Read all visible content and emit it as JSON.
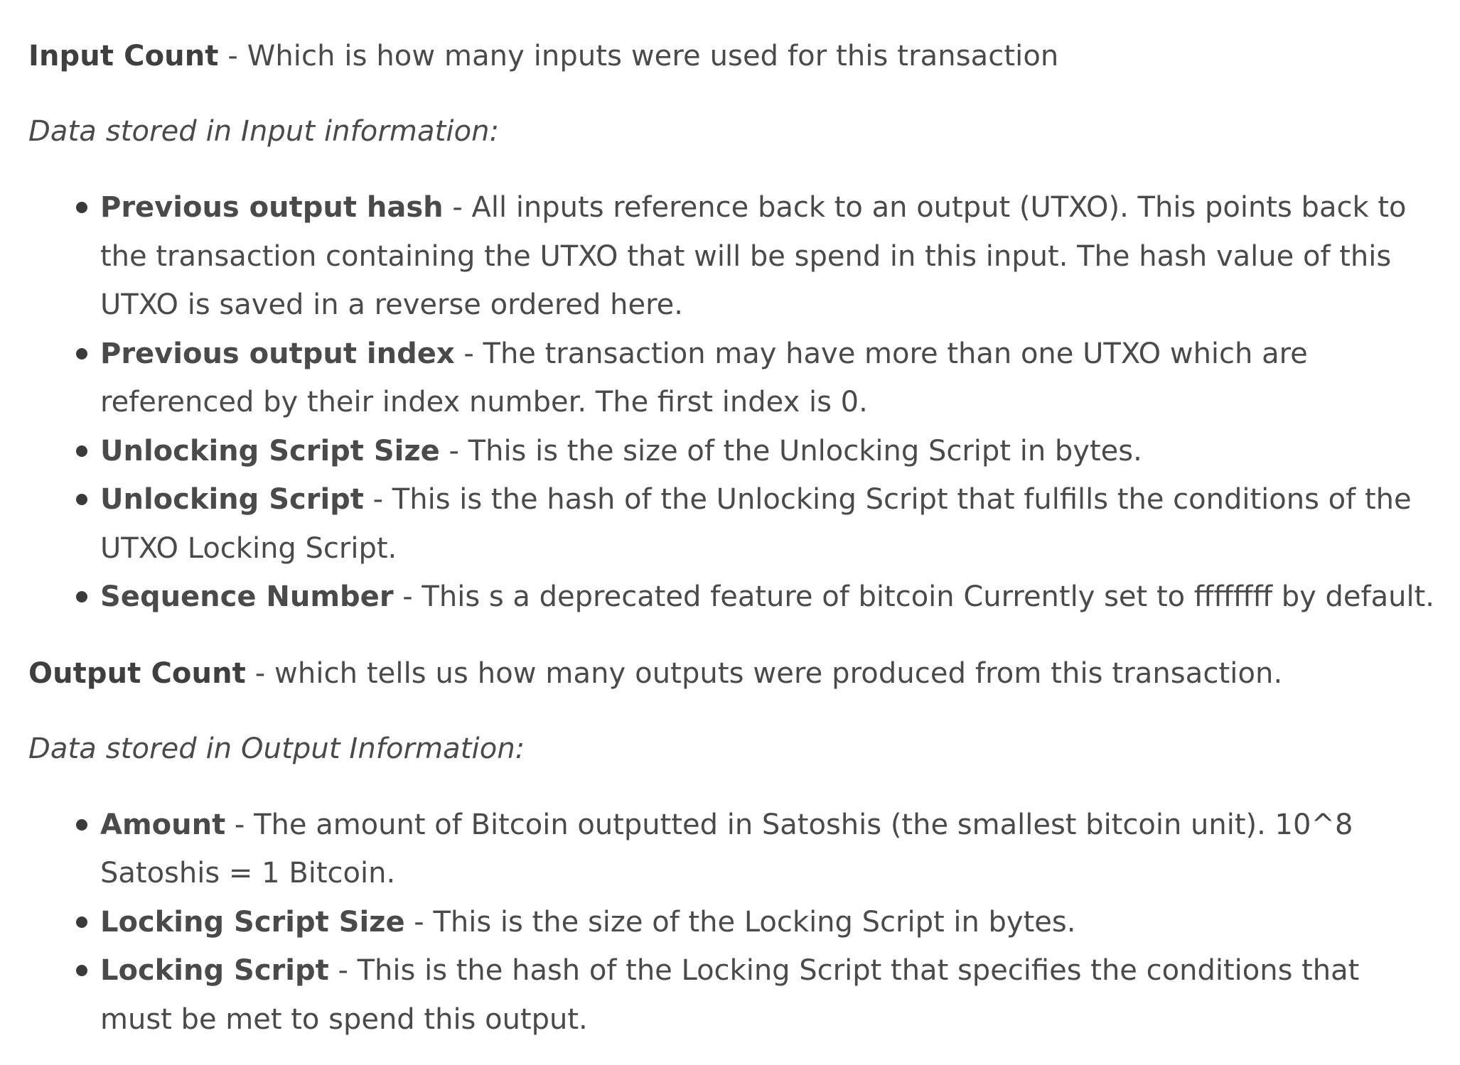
{
  "input_count": {
    "term": "Input Count",
    "separator": " - ",
    "description": "Which is how many inputs were used for this transaction"
  },
  "input_heading": "Data stored in Input information:",
  "input_items": [
    {
      "term": "Previous output hash",
      "description": "All inputs reference back to an output (UTXO). This points back to the transaction containing the UTXO that will be spend in this input. The hash value of this UTXO is saved in a reverse ordered here."
    },
    {
      "term": "Previous output index",
      "description": "The transaction may have more than one UTXO which are referenced by their index number. The first index is 0."
    },
    {
      "term": "Unlocking Script Size",
      "description": "This is the size of the Unlocking Script in bytes."
    },
    {
      "term": "Unlocking Script",
      "description": "This is the hash of the Unlocking Script that fulfills the conditions of the UTXO Locking Script."
    },
    {
      "term": "Sequence Number",
      "description": "This s a deprecated feature of bitcoin Currently set to ffffffff by default."
    }
  ],
  "output_count": {
    "term": "Output Count",
    "separator": " - ",
    "description": "which tells us how many outputs were produced from this transaction."
  },
  "output_heading": "Data stored in Output Information:",
  "output_items": [
    {
      "term": "Amount",
      "description": "The amount of Bitcoin outputted in Satoshis (the smallest bitcoin unit). 10^8 Satoshis = 1 Bitcoin."
    },
    {
      "term": "Locking Script Size",
      "description": "This is the size of the Locking Script in bytes."
    },
    {
      "term": "Locking Script",
      "description": "This is the hash of the Locking Script that specifies the conditions that must be met to spend this output."
    }
  ],
  "separator": " - "
}
